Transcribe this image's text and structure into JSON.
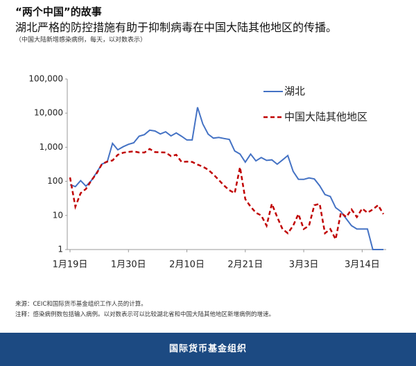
{
  "chart_data": {
    "type": "line",
    "title": "“两个中国”的故事",
    "subtitle": "湖北严格的防控措施有助于抑制病毒在中国大陆其他地区的传播。",
    "y_label": "（中国大陆新增感染病例，每天，以对数表示）",
    "source": "来源：CEIC和国际货币基金组织工作人员的计算。",
    "note": "注释：感染病例数包括输入病例。以对数表示可以比较湖北省和中国大陆其他地区新增病例的增速。",
    "categories": [
      "1月19日",
      null,
      null,
      null,
      null,
      null,
      null,
      null,
      null,
      null,
      null,
      "1月30日",
      null,
      null,
      null,
      null,
      null,
      null,
      null,
      null,
      null,
      null,
      "2月10日",
      null,
      null,
      null,
      null,
      null,
      null,
      null,
      null,
      null,
      null,
      "2月21日",
      null,
      null,
      null,
      null,
      null,
      null,
      null,
      null,
      null,
      null,
      "3月3日",
      null,
      null,
      null,
      null,
      null,
      null,
      null,
      null,
      null,
      null,
      "3月14日",
      null,
      null,
      null,
      null
    ],
    "series": [
      {
        "name": "湖北",
        "color": "#4472c4",
        "dash": false,
        "values": [
          80,
          70,
          105,
          72,
          105,
          180,
          320,
          371,
          1291,
          840,
          1032,
          1220,
          1347,
          2103,
          2345,
          3156,
          2987,
          2447,
          2841,
          2147,
          2618,
          2097,
          1638,
          1638,
          14840,
          4823,
          2420,
          1843,
          1933,
          1807,
          1693,
          775,
          631,
          366,
          630,
          398,
          499,
          411,
          426,
          318,
          423,
          570,
          196,
          115,
          114,
          126,
          117,
          74,
          41,
          36,
          17,
          13,
          8,
          5,
          4,
          4,
          4,
          1,
          1,
          1
        ]
      },
      {
        "name": "中国大陆其他地区",
        "color": "#c00000",
        "dash": true,
        "values": [
          130,
          18,
          45,
          60,
          105,
          170,
          320,
          380,
          410,
          600,
          690,
          730,
          760,
          700,
          700,
          890,
          720,
          710,
          700,
          550,
          600,
          370,
          380,
          370,
          310,
          270,
          220,
          160,
          110,
          75,
          55,
          45,
          260,
          30,
          18,
          12,
          10,
          5,
          22,
          9,
          4,
          3,
          5,
          11,
          4,
          5,
          20,
          22,
          3,
          4,
          2,
          12,
          9,
          15,
          9,
          16,
          12,
          15,
          20,
          11
        ]
      }
    ],
    "log_scale": true,
    "ylim": [
      1,
      100000
    ],
    "yticks": [
      1,
      10,
      100,
      {
        "value": 1000,
        "label": "1,000"
      },
      {
        "value": 10000,
        "label": "10,000"
      },
      {
        "value": 100000,
        "label": "100,000"
      }
    ],
    "grid": false,
    "legend": "upper right"
  },
  "footer": "国际货币基金组织"
}
